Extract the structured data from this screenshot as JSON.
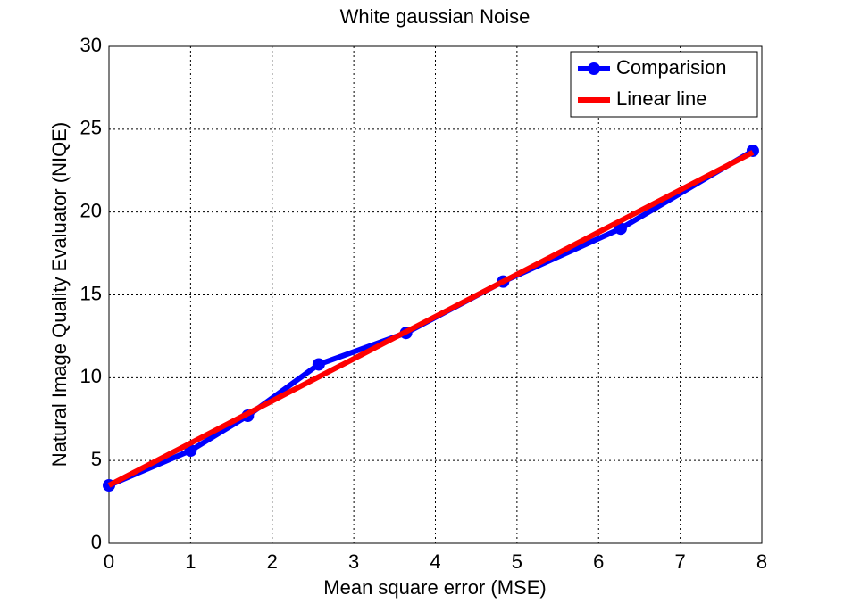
{
  "chart_data": {
    "type": "line",
    "title": "White gaussian Noise",
    "xlabel": "Mean square error (MSE)",
    "ylabel": "Natural Image Quality Evaluator (NIQE)",
    "series": [
      {
        "name": "Comparision",
        "color": "#0000ff",
        "marker": "circle",
        "x": [
          0,
          1,
          1.7,
          2.57,
          3.64,
          4.83,
          6.27,
          7.89
        ],
        "values": [
          3.5,
          5.6,
          7.7,
          10.8,
          12.7,
          15.8,
          19.0,
          23.7
        ]
      },
      {
        "name": "Linear line",
        "color": "#ff0000",
        "x": [
          0,
          7.89
        ],
        "values": [
          3.5,
          23.6
        ]
      }
    ],
    "xlim": [
      0,
      8
    ],
    "xticks": [
      0,
      1,
      2,
      3,
      4,
      5,
      6,
      7,
      8
    ],
    "ylim": [
      0,
      30
    ],
    "yticks": [
      0,
      5,
      10,
      15,
      20,
      25,
      30
    ],
    "grid": true,
    "legend": "top-right"
  }
}
